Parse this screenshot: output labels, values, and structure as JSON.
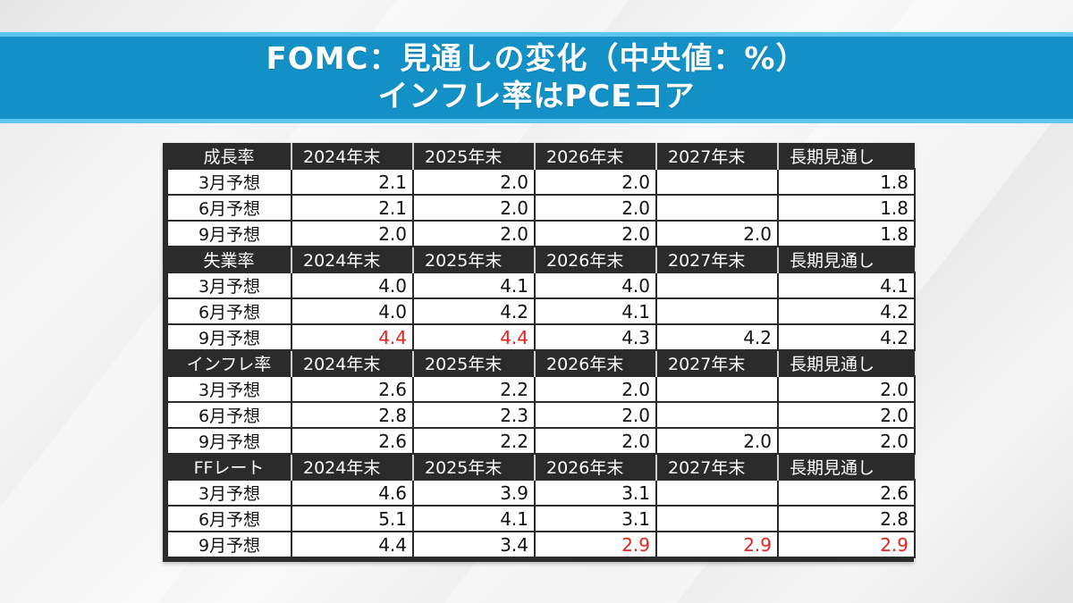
{
  "banner": {
    "title_line1": "FOMC：見通しの変化（中央値：%）",
    "title_line2": "インフレ率はPCEコア",
    "bg_color": "#1390c6"
  },
  "table": {
    "columns": [
      "2024年末",
      "2025年末",
      "2026年末",
      "2027年末",
      "長期見通し"
    ],
    "highlight_color": "#e0231d",
    "sections": [
      {
        "label": "成長率",
        "columns": [
          "2024年末",
          "2025年末",
          "2026年末",
          "2027年末",
          "長期見通し"
        ],
        "rows": [
          {
            "label": "3月予想",
            "values": [
              "2.1",
              "2.0",
              "2.0",
              "",
              "1.8"
            ],
            "highlight": [
              false,
              false,
              false,
              false,
              false
            ]
          },
          {
            "label": "6月予想",
            "values": [
              "2.1",
              "2.0",
              "2.0",
              "",
              "1.8"
            ],
            "highlight": [
              false,
              false,
              false,
              false,
              false
            ]
          },
          {
            "label": "9月予想",
            "values": [
              "2.0",
              "2.0",
              "2.0",
              "2.0",
              "1.8"
            ],
            "highlight": [
              false,
              false,
              false,
              false,
              false
            ]
          }
        ]
      },
      {
        "label": "失業率",
        "columns": [
          "2024年末",
          "2025年末",
          "2026年末",
          "2027年末",
          "長期見通し"
        ],
        "rows": [
          {
            "label": "3月予想",
            "values": [
              "4.0",
              "4.1",
              "4.0",
              "",
              "4.1"
            ],
            "highlight": [
              false,
              false,
              false,
              false,
              false
            ]
          },
          {
            "label": "6月予想",
            "values": [
              "4.0",
              "4.2",
              "4.1",
              "",
              "4.2"
            ],
            "highlight": [
              false,
              false,
              false,
              false,
              false
            ]
          },
          {
            "label": "9月予想",
            "values": [
              "4.4",
              "4.4",
              "4.3",
              "4.2",
              "4.2"
            ],
            "highlight": [
              true,
              true,
              false,
              false,
              false
            ]
          }
        ]
      },
      {
        "label": "インフレ率",
        "columns": [
          "2024年末",
          "2025年末",
          "2026年末",
          "2027年末",
          "長期見通し"
        ],
        "rows": [
          {
            "label": "3月予想",
            "values": [
              "2.6",
              "2.2",
              "2.0",
              "",
              "2.0"
            ],
            "highlight": [
              false,
              false,
              false,
              false,
              false
            ]
          },
          {
            "label": "6月予想",
            "values": [
              "2.8",
              "2.3",
              "2.0",
              "",
              "2.0"
            ],
            "highlight": [
              false,
              false,
              false,
              false,
              false
            ]
          },
          {
            "label": "9月予想",
            "values": [
              "2.6",
              "2.2",
              "2.0",
              "2.0",
              "2.0"
            ],
            "highlight": [
              false,
              false,
              false,
              false,
              false
            ]
          }
        ]
      },
      {
        "label": "FFレート",
        "columns": [
          "2024年末",
          "2025年末",
          "2026年末",
          "2027年末",
          "長期見通し"
        ],
        "rows": [
          {
            "label": "3月予想",
            "values": [
              "4.6",
              "3.9",
              "3.1",
              "",
              "2.6"
            ],
            "highlight": [
              false,
              false,
              false,
              false,
              false
            ]
          },
          {
            "label": "6月予想",
            "values": [
              "5.1",
              "4.1",
              "3.1",
              "",
              "2.8"
            ],
            "highlight": [
              false,
              false,
              false,
              false,
              false
            ]
          },
          {
            "label": "9月予想",
            "values": [
              "4.4",
              "3.4",
              "2.9",
              "2.9",
              "2.9"
            ],
            "highlight": [
              false,
              false,
              true,
              true,
              true
            ]
          }
        ]
      }
    ]
  }
}
